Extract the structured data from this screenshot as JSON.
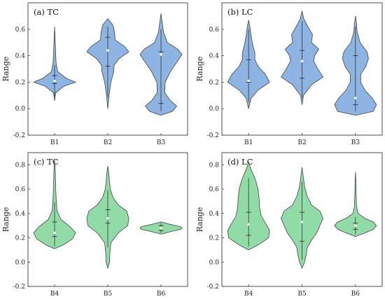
{
  "chart_data": [
    {
      "type": "violin",
      "title": "(a) TC",
      "ylabel": "Range",
      "ylim": [
        -0.2,
        0.8
      ],
      "yticks": [
        "-0.2",
        "0.0",
        "0.2",
        "0.4",
        "0.6"
      ],
      "fill": "#8db4e2",
      "categories": [
        "B1",
        "B2",
        "B3"
      ],
      "violins": [
        {
          "category": "B1",
          "min": 0.06,
          "max": 0.62,
          "q1": 0.19,
          "median": 0.21,
          "q3": 0.25,
          "wlo": 0.09,
          "whi": 0.33,
          "shape": [
            [
              0.06,
              0
            ],
            [
              0.12,
              0.05
            ],
            [
              0.17,
              0.45
            ],
            [
              0.2,
              1.0
            ],
            [
              0.23,
              0.55
            ],
            [
              0.28,
              0.15
            ],
            [
              0.35,
              0.07
            ],
            [
              0.45,
              0.04
            ],
            [
              0.55,
              0.02
            ],
            [
              0.62,
              0
            ]
          ]
        },
        {
          "category": "B2",
          "min": 0.0,
          "max": 0.68,
          "q1": 0.32,
          "median": 0.44,
          "q3": 0.54,
          "wlo": 0.09,
          "whi": 0.62,
          "shape": [
            [
              0,
              0
            ],
            [
              0.1,
              0.06
            ],
            [
              0.2,
              0.15
            ],
            [
              0.28,
              0.28
            ],
            [
              0.33,
              0.3
            ],
            [
              0.38,
              0.55
            ],
            [
              0.43,
              1.0
            ],
            [
              0.47,
              0.8
            ],
            [
              0.52,
              0.35
            ],
            [
              0.58,
              0.32
            ],
            [
              0.63,
              0.25
            ],
            [
              0.68,
              0
            ]
          ]
        },
        {
          "category": "B3",
          "min": -0.05,
          "max": 0.72,
          "q1": 0.04,
          "median": 0.41,
          "q3": 0.43,
          "wlo": -0.02,
          "whi": 0.6,
          "shape": [
            [
              -0.05,
              0
            ],
            [
              -0.02,
              0.55
            ],
            [
              0.02,
              0.75
            ],
            [
              0.06,
              0.45
            ],
            [
              0.12,
              0.18
            ],
            [
              0.2,
              0.2
            ],
            [
              0.28,
              0.45
            ],
            [
              0.35,
              0.75
            ],
            [
              0.41,
              1.0
            ],
            [
              0.45,
              0.8
            ],
            [
              0.5,
              0.3
            ],
            [
              0.58,
              0.12
            ],
            [
              0.65,
              0.06
            ],
            [
              0.72,
              0
            ]
          ]
        }
      ]
    },
    {
      "type": "violin",
      "title": "(b) LC",
      "ylabel": "Range",
      "ylim": [
        -0.2,
        0.8
      ],
      "yticks": [
        "-0.2",
        "0.0",
        "0.2",
        "0.4",
        "0.6"
      ],
      "fill": "#8db4e2",
      "categories": [
        "B1",
        "B2",
        "B3"
      ],
      "violins": [
        {
          "category": "B1",
          "min": 0.0,
          "max": 0.67,
          "q1": 0.2,
          "median": 0.21,
          "q3": 0.37,
          "wlo": 0.05,
          "whi": 0.6,
          "shape": [
            [
              0,
              0
            ],
            [
              0.08,
              0.12
            ],
            [
              0.14,
              0.45
            ],
            [
              0.2,
              1.0
            ],
            [
              0.26,
              0.8
            ],
            [
              0.32,
              0.45
            ],
            [
              0.37,
              0.3
            ],
            [
              0.42,
              0.3
            ],
            [
              0.48,
              0.2
            ],
            [
              0.55,
              0.12
            ],
            [
              0.62,
              0.06
            ],
            [
              0.67,
              0
            ]
          ]
        },
        {
          "category": "B2",
          "min": 0.03,
          "max": 0.74,
          "q1": 0.23,
          "median": 0.36,
          "q3": 0.44,
          "wlo": 0.08,
          "whi": 0.66,
          "shape": [
            [
              0.03,
              0
            ],
            [
              0.1,
              0.07
            ],
            [
              0.18,
              0.45
            ],
            [
              0.24,
              1.0
            ],
            [
              0.3,
              0.75
            ],
            [
              0.36,
              0.55
            ],
            [
              0.4,
              0.6
            ],
            [
              0.45,
              0.8
            ],
            [
              0.5,
              0.45
            ],
            [
              0.56,
              0.5
            ],
            [
              0.62,
              0.28
            ],
            [
              0.68,
              0.08
            ],
            [
              0.74,
              0
            ]
          ]
        },
        {
          "category": "B3",
          "min": -0.05,
          "max": 0.7,
          "q1": 0.03,
          "median": 0.08,
          "q3": 0.4,
          "wlo": -0.02,
          "whi": 0.62,
          "shape": [
            [
              -0.05,
              0
            ],
            [
              -0.02,
              0.85
            ],
            [
              0.03,
              1.0
            ],
            [
              0.08,
              0.8
            ],
            [
              0.14,
              0.45
            ],
            [
              0.2,
              0.25
            ],
            [
              0.26,
              0.25
            ],
            [
              0.32,
              0.5
            ],
            [
              0.38,
              0.62
            ],
            [
              0.43,
              0.55
            ],
            [
              0.5,
              0.22
            ],
            [
              0.58,
              0.08
            ],
            [
              0.64,
              0.05
            ],
            [
              0.7,
              0
            ]
          ]
        }
      ]
    },
    {
      "type": "violin",
      "title": "(c) TC",
      "ylabel": "Range",
      "ylim": [
        -0.2,
        0.9
      ],
      "yticks": [
        "-0.2",
        "0.0",
        "0.2",
        "0.4",
        "0.6",
        "0.8"
      ],
      "fill": "#90dba6",
      "categories": [
        "B4",
        "B5",
        "B6"
      ],
      "violins": [
        {
          "category": "B4",
          "min": 0.11,
          "max": 0.84,
          "q1": 0.21,
          "median": 0.24,
          "q3": 0.33,
          "wlo": 0.13,
          "whi": 0.49,
          "shape": [
            [
              0.11,
              0
            ],
            [
              0.14,
              0.4
            ],
            [
              0.19,
              0.85
            ],
            [
              0.24,
              1.0
            ],
            [
              0.29,
              0.75
            ],
            [
              0.35,
              0.3
            ],
            [
              0.42,
              0.12
            ],
            [
              0.5,
              0.08
            ],
            [
              0.58,
              0.06
            ],
            [
              0.68,
              0.04
            ],
            [
              0.76,
              0.03
            ],
            [
              0.84,
              0
            ]
          ]
        },
        {
          "category": "B5",
          "min": -0.05,
          "max": 0.79,
          "q1": 0.32,
          "median": 0.36,
          "q3": 0.43,
          "wlo": 0.12,
          "whi": 0.59,
          "shape": [
            [
              -0.05,
              0
            ],
            [
              0.0,
              0.08
            ],
            [
              0.08,
              0.1
            ],
            [
              0.16,
              0.15
            ],
            [
              0.24,
              0.5
            ],
            [
              0.3,
              0.95
            ],
            [
              0.36,
              1.0
            ],
            [
              0.42,
              0.9
            ],
            [
              0.47,
              0.5
            ],
            [
              0.53,
              0.25
            ],
            [
              0.6,
              0.12
            ],
            [
              0.68,
              0.07
            ],
            [
              0.74,
              0.04
            ],
            [
              0.79,
              0
            ]
          ]
        },
        {
          "category": "B6",
          "min": 0.23,
          "max": 0.33,
          "q1": 0.26,
          "median": 0.28,
          "q3": 0.3,
          "wlo": 0.24,
          "whi": 0.32,
          "shape": [
            [
              0.23,
              0
            ],
            [
              0.25,
              0.45
            ],
            [
              0.27,
              0.95
            ],
            [
              0.28,
              1.0
            ],
            [
              0.29,
              0.95
            ],
            [
              0.31,
              0.45
            ],
            [
              0.33,
              0
            ]
          ]
        }
      ]
    },
    {
      "type": "violin",
      "title": "(d) LC",
      "ylabel": "Range",
      "ylim": [
        -0.2,
        0.9
      ],
      "yticks": [
        "-0.2",
        "0.0",
        "0.2",
        "0.4",
        "0.6",
        "0.8"
      ],
      "fill": "#90dba6",
      "categories": [
        "B4",
        "B5",
        "B6"
      ],
      "violins": [
        {
          "category": "B4",
          "min": 0.1,
          "max": 0.82,
          "q1": 0.22,
          "median": 0.31,
          "q3": 0.41,
          "wlo": 0.13,
          "whi": 0.69,
          "shape": [
            [
              0.1,
              0
            ],
            [
              0.14,
              0.45
            ],
            [
              0.2,
              0.95
            ],
            [
              0.26,
              1.0
            ],
            [
              0.32,
              0.8
            ],
            [
              0.38,
              0.6
            ],
            [
              0.45,
              0.52
            ],
            [
              0.52,
              0.5
            ],
            [
              0.6,
              0.45
            ],
            [
              0.68,
              0.32
            ],
            [
              0.76,
              0.12
            ],
            [
              0.82,
              0
            ]
          ]
        },
        {
          "category": "B5",
          "min": -0.05,
          "max": 0.78,
          "q1": 0.17,
          "median": 0.33,
          "q3": 0.41,
          "wlo": 0.02,
          "whi": 0.66,
          "shape": [
            [
              -0.05,
              0
            ],
            [
              0.0,
              0.12
            ],
            [
              0.06,
              0.2
            ],
            [
              0.12,
              0.25
            ],
            [
              0.18,
              0.45
            ],
            [
              0.24,
              0.7
            ],
            [
              0.3,
              0.85
            ],
            [
              0.36,
              1.0
            ],
            [
              0.42,
              0.85
            ],
            [
              0.47,
              0.45
            ],
            [
              0.54,
              0.25
            ],
            [
              0.62,
              0.12
            ],
            [
              0.7,
              0.06
            ],
            [
              0.78,
              0
            ]
          ]
        },
        {
          "category": "B6",
          "min": 0.21,
          "max": 0.74,
          "q1": 0.27,
          "median": 0.3,
          "q3": 0.32,
          "wlo": 0.23,
          "whi": 0.37,
          "shape": [
            [
              0.21,
              0
            ],
            [
              0.24,
              0.45
            ],
            [
              0.27,
              0.85
            ],
            [
              0.3,
              1.0
            ],
            [
              0.33,
              0.85
            ],
            [
              0.36,
              0.45
            ],
            [
              0.4,
              0.12
            ],
            [
              0.46,
              0.05
            ],
            [
              0.55,
              0.03
            ],
            [
              0.65,
              0.02
            ],
            [
              0.74,
              0
            ]
          ]
        }
      ]
    }
  ]
}
